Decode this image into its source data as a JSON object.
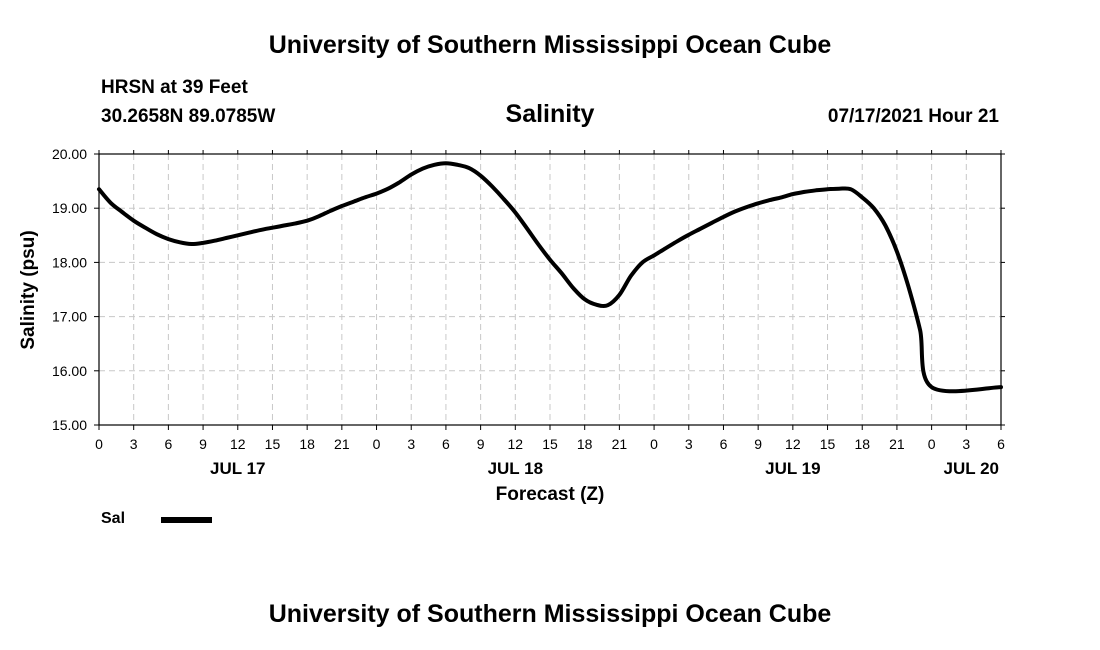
{
  "header": {
    "top_title": "University of Southern Mississippi Ocean Cube",
    "station": "HRSN at 39 Feet",
    "coords": "30.2658N  89.0785W",
    "datetime": "07/17/2021 Hour 21",
    "bottom_title": "University of Southern Mississippi Ocean Cube"
  },
  "chart_data": {
    "type": "line",
    "title": "Salinity",
    "xlabel": "Forecast (Z)",
    "ylabel": "Salinity (psu)",
    "ylim": [
      15.0,
      20.0
    ],
    "xlim": [
      0,
      78
    ],
    "yticks": [
      "15.00",
      "16.00",
      "17.00",
      "18.00",
      "19.00",
      "20.00"
    ],
    "xtick_labels": [
      "0",
      "3",
      "6",
      "9",
      "12",
      "15",
      "18",
      "21",
      "0",
      "3",
      "6",
      "9",
      "12",
      "15",
      "18",
      "21",
      "0",
      "3",
      "6",
      "9",
      "12",
      "15",
      "18",
      "21",
      "0",
      "3",
      "6"
    ],
    "date_labels": [
      {
        "label": "JUL 17",
        "hour": 12
      },
      {
        "label": "JUL 18",
        "hour": 36
      },
      {
        "label": "JUL 19",
        "hour": 60
      },
      {
        "label": "JUL 20",
        "hour": 78
      }
    ],
    "grid": true,
    "series": [
      {
        "name": "Sal",
        "color": "#000000",
        "x": [
          0,
          1,
          2,
          3,
          4,
          5,
          6,
          7,
          8,
          9,
          10,
          11,
          12,
          13,
          14,
          15,
          16,
          17,
          18,
          19,
          20,
          21,
          22,
          23,
          24,
          25,
          26,
          27,
          28,
          29,
          30,
          31,
          32,
          33,
          34,
          35,
          36,
          37,
          38,
          39,
          40,
          41,
          42,
          43,
          44,
          45,
          46,
          47,
          48,
          49,
          50,
          51,
          52,
          53,
          54,
          55,
          56,
          57,
          58,
          59,
          60,
          61,
          62,
          63,
          64,
          65,
          66,
          67,
          68,
          69,
          70,
          71,
          72,
          73,
          74,
          75,
          76,
          77,
          78
        ],
        "y": [
          19.35,
          19.1,
          18.93,
          18.77,
          18.64,
          18.52,
          18.43,
          18.37,
          18.34,
          18.36,
          18.4,
          18.45,
          18.5,
          18.55,
          18.6,
          18.64,
          18.68,
          18.72,
          18.77,
          18.85,
          18.95,
          19.04,
          19.12,
          19.2,
          19.27,
          19.36,
          19.48,
          19.62,
          19.73,
          19.8,
          19.83,
          19.8,
          19.74,
          19.6,
          19.4,
          19.17,
          18.92,
          18.63,
          18.33,
          18.05,
          17.8,
          17.53,
          17.32,
          17.22,
          17.21,
          17.4,
          17.75,
          18.0,
          18.13,
          18.26,
          18.39,
          18.51,
          18.62,
          18.73,
          18.84,
          18.94,
          19.02,
          19.09,
          19.15,
          19.2,
          19.26,
          19.3,
          19.33,
          19.35,
          19.36,
          19.35,
          19.2,
          19.0,
          18.68,
          18.2,
          17.55,
          16.75,
          15.7,
          15.7,
          15.7,
          15.7,
          15.7,
          15.7,
          15.7
        ]
      }
    ]
  },
  "legend": {
    "label": "Sal"
  }
}
